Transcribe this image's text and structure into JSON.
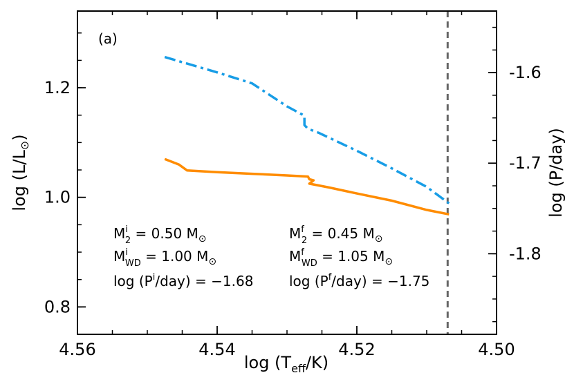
{
  "chart_data": {
    "type": "line",
    "panel_label": "(a)",
    "xlabel": {
      "main": "log (T",
      "sub": "eff",
      "tail": "/K)"
    },
    "ylabel_left": {
      "main": "log (L/L",
      "sub": "⊙",
      "tail": ")"
    },
    "ylabel_right": "log (P/day)",
    "x_reversed": true,
    "xlim": [
      4.56,
      4.5
    ],
    "ylim_left": [
      0.75,
      1.34
    ],
    "ylim_right": [
      -1.889,
      -1.532
    ],
    "x_ticks": [
      "4.56",
      "4.54",
      "4.52",
      "4.50"
    ],
    "x_tick_values": [
      4.56,
      4.54,
      4.52,
      4.5
    ],
    "y_left_ticks": [
      "0.8",
      "1.0",
      "1.2"
    ],
    "y_left_tick_values": [
      0.8,
      1.0,
      1.2
    ],
    "y_right_ticks": [
      "-1.6",
      "-1.7",
      "-1.8"
    ],
    "y_right_tick_values": [
      -1.6,
      -1.7,
      -1.8
    ],
    "vertical_line_x": 4.507,
    "series": [
      {
        "axis": "left",
        "color": "#ff8c00",
        "style": "solid",
        "points": [
          [
            4.5475,
            1.07
          ],
          [
            4.5455,
            1.06
          ],
          [
            4.5443,
            1.049
          ],
          [
            4.54,
            1.046
          ],
          [
            4.535,
            1.043
          ],
          [
            4.53,
            1.04
          ],
          [
            4.527,
            1.038
          ],
          [
            4.5268,
            1.033
          ],
          [
            4.5262,
            1.031
          ],
          [
            4.5268,
            1.025
          ],
          [
            4.524,
            1.018
          ],
          [
            4.52,
            1.007
          ],
          [
            4.515,
            0.994
          ],
          [
            4.51,
            0.977
          ],
          [
            4.5068,
            0.969
          ]
        ]
      },
      {
        "axis": "left",
        "color": "#189de6",
        "style": "dashdot",
        "points": [
          [
            4.5475,
            1.256
          ],
          [
            4.54,
            1.228
          ],
          [
            4.535,
            1.208
          ],
          [
            4.53,
            1.166
          ],
          [
            4.5275,
            1.149
          ],
          [
            4.5275,
            1.132
          ],
          [
            4.527,
            1.125
          ],
          [
            4.5255,
            1.118
          ],
          [
            4.52,
            1.085
          ],
          [
            4.515,
            1.053
          ],
          [
            4.51,
            1.019
          ],
          [
            4.5068,
            0.989
          ]
        ]
      }
    ],
    "annotations": {
      "left": [
        {
          "base": "M",
          "sup": "i",
          "sub": "2",
          "rest": " = 0.50 M",
          "sun": "⊙"
        },
        {
          "base": "M",
          "sup": "i",
          "sub": "WD",
          "rest": " = 1.00 M",
          "sun": "⊙"
        },
        {
          "pre": "log (P",
          "sup": "i",
          "rest": "/day) = −1.68"
        }
      ],
      "right": [
        {
          "base": "M",
          "sup": "f",
          "sub": "2",
          "rest": " = 0.45 M",
          "sun": "⊙"
        },
        {
          "base": "M",
          "sup": "f",
          "sub": "WD",
          "rest": " = 1.05 M",
          "sun": "⊙"
        },
        {
          "pre": "log (P",
          "sup": "f",
          "rest": "/day) = −1.75"
        }
      ]
    },
    "colors": {
      "axis": "#000000",
      "vline": "#666666"
    }
  }
}
